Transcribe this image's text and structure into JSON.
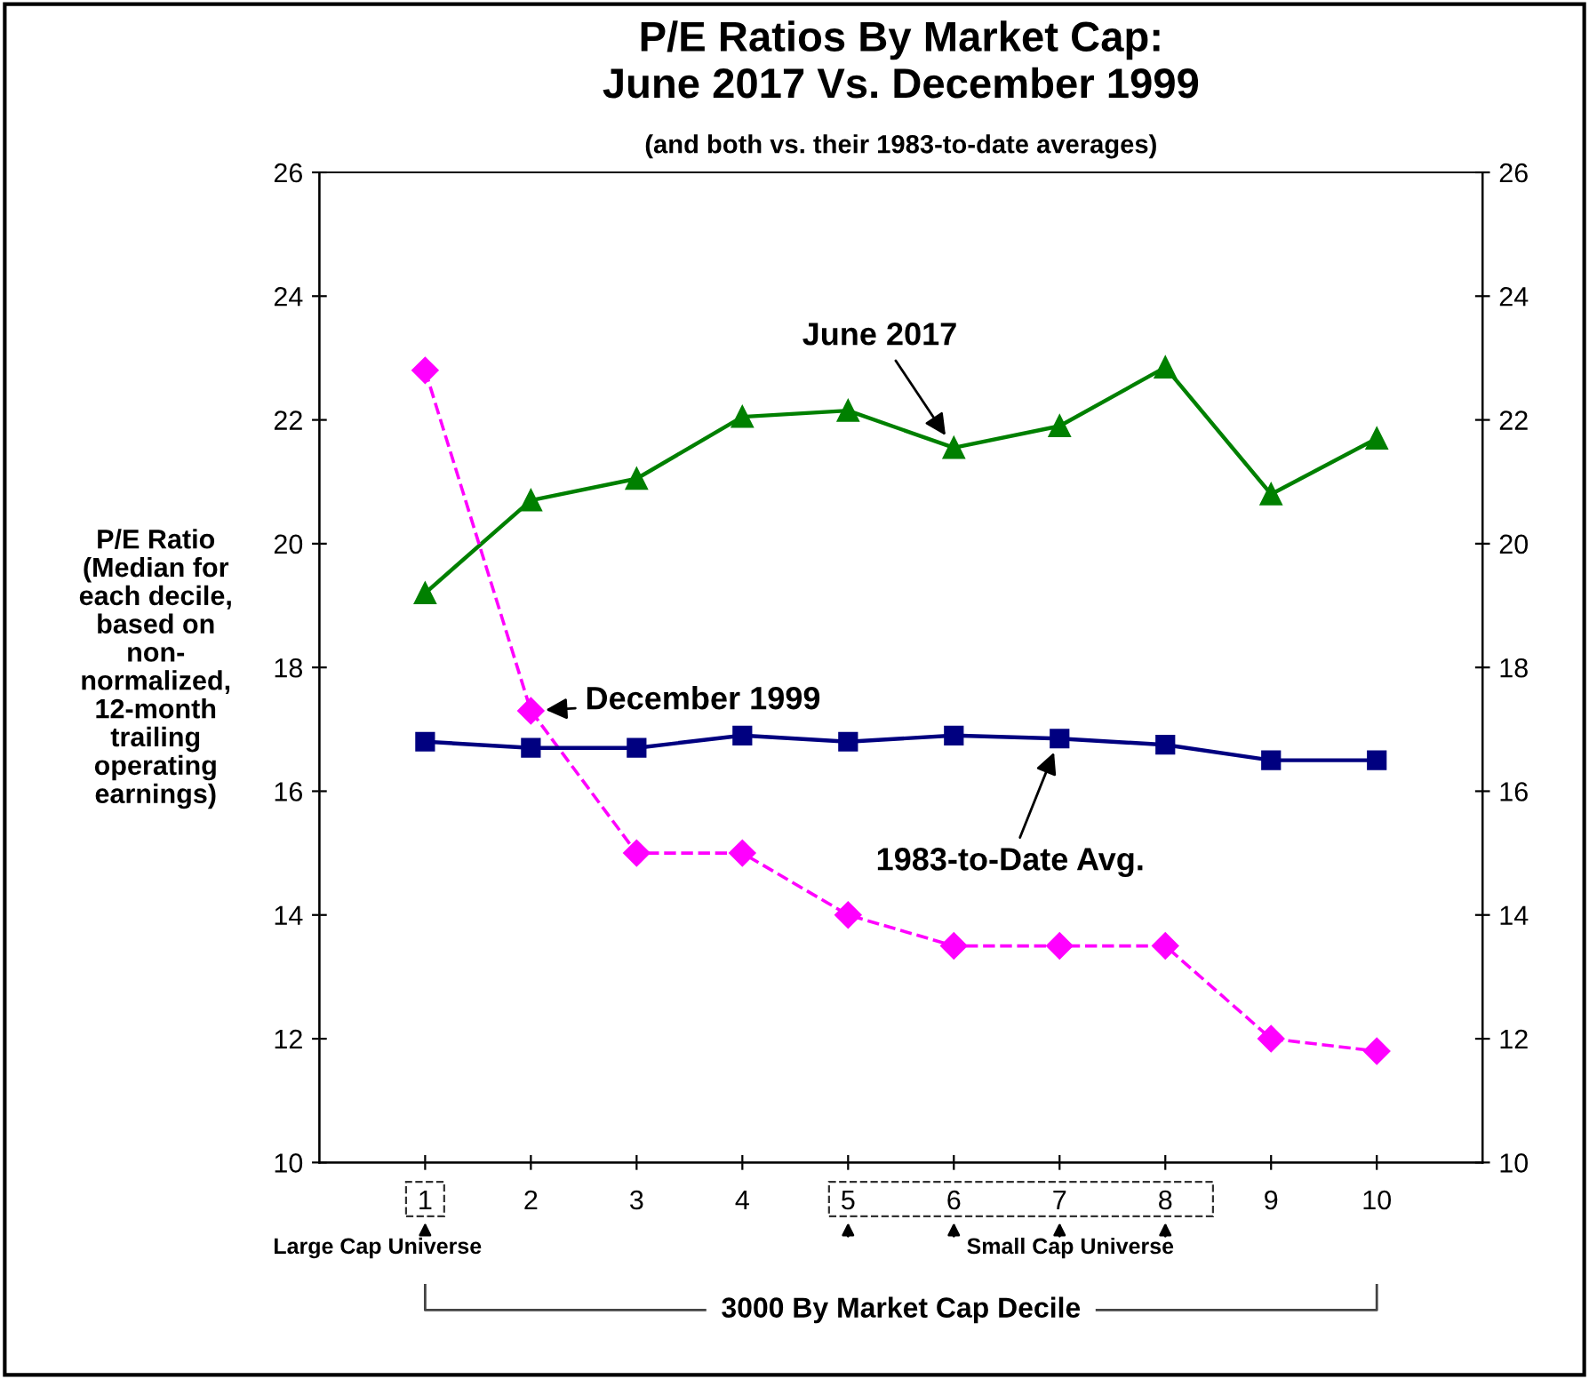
{
  "chart_data": {
    "type": "line",
    "title": "P/E Ratios By Market Cap:\nJune 2017 Vs. December 1999",
    "subtitle": "(and both vs. their 1983-to-date averages)",
    "ylabel": "P/E Ratio\n(Median for\neach decile,\nbased on\nnon-\nnormalized,\n12-month\ntrailing\noperating\nearnings)",
    "x": [
      1,
      2,
      3,
      4,
      5,
      6,
      7,
      8,
      9,
      10
    ],
    "series": [
      {
        "name": "June 2017",
        "color": "#008000",
        "marker": "triangle",
        "line_style": "solid",
        "values": [
          19.2,
          20.7,
          21.05,
          22.05,
          22.15,
          21.55,
          21.9,
          22.85,
          20.8,
          21.7
        ]
      },
      {
        "name": "December 1999",
        "color": "#ff00ff",
        "marker": "diamond",
        "line_style": "dashed",
        "values": [
          22.8,
          17.3,
          15.0,
          15.0,
          14.0,
          13.5,
          13.5,
          13.5,
          12.0,
          11.8
        ]
      },
      {
        "name": "1983-to-Date Avg.",
        "color": "#000080",
        "marker": "square",
        "line_style": "solid",
        "values": [
          16.8,
          16.7,
          16.7,
          16.9,
          16.8,
          16.9,
          16.85,
          16.75,
          16.5,
          16.5
        ]
      }
    ],
    "xlim": [
      0,
      11
    ],
    "xticks": [
      1,
      2,
      3,
      4,
      5,
      6,
      7,
      8,
      9,
      10
    ],
    "ylim": [
      10,
      26
    ],
    "yticks": [
      10,
      12,
      14,
      16,
      18,
      20,
      22,
      24,
      26
    ],
    "y2lim": [
      10,
      26
    ],
    "y2ticks": [
      10,
      12,
      14,
      16,
      18,
      20,
      22,
      24,
      26
    ],
    "grid": false,
    "legend": false,
    "annotations": [
      "Large Cap Universe",
      "Small Cap Universe",
      "3000 By Market Cap Decile"
    ]
  }
}
